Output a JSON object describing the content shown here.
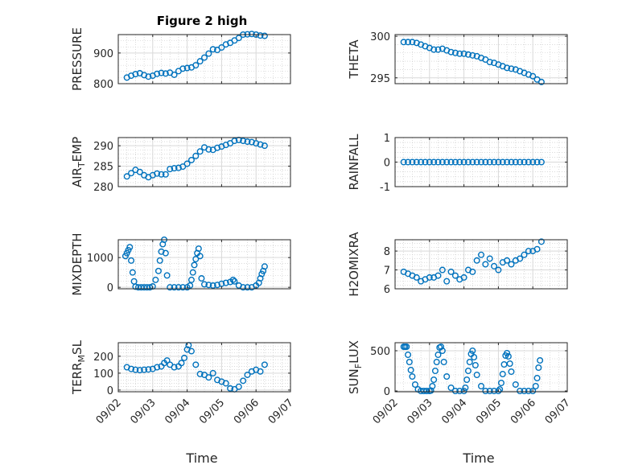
{
  "chart_data": [
    {
      "type": "scatter",
      "title": "Figure 2 high",
      "ylabel": "PRESSURE",
      "ylim": [
        800,
        960
      ],
      "yticks": [
        "800",
        "900"
      ],
      "ytick_values": [
        800,
        900
      ],
      "x": [
        "09/02 06:00",
        "09/02 09:00",
        "09/02 12:00",
        "09/02 15:00",
        "09/02 18:00",
        "09/02 21:00",
        "09/03 00:00",
        "09/03 03:00",
        "09/03 06:00",
        "09/03 09:00",
        "09/03 12:00",
        "09/03 15:00",
        "09/03 18:00",
        "09/03 21:00",
        "09/04 00:00",
        "09/04 03:00",
        "09/04 06:00",
        "09/04 09:00",
        "09/04 12:00",
        "09/04 15:00",
        "09/04 18:00",
        "09/04 21:00",
        "09/05 00:00",
        "09/05 03:00",
        "09/05 06:00",
        "09/05 09:00",
        "09/05 12:00",
        "09/05 15:00",
        "09/05 18:00",
        "09/05 21:00",
        "09/06 00:00",
        "09/06 03:00",
        "09/06 06:00"
      ],
      "values": [
        820,
        826,
        831,
        834,
        828,
        823,
        826,
        832,
        835,
        833,
        836,
        829,
        841,
        849,
        851,
        853,
        860,
        873,
        885,
        898,
        912,
        910,
        918,
        928,
        933,
        941,
        949,
        960,
        961,
        962,
        960,
        957,
        956
      ]
    },
    {
      "type": "scatter",
      "ylabel": "THETA",
      "ylim": [
        294.3,
        300.2
      ],
      "yticks": [
        "295",
        "300"
      ],
      "ytick_values": [
        295,
        300
      ],
      "x": [
        "09/02 06:00",
        "09/02 09:00",
        "09/02 12:00",
        "09/02 15:00",
        "09/02 18:00",
        "09/02 21:00",
        "09/03 00:00",
        "09/03 03:00",
        "09/03 06:00",
        "09/03 09:00",
        "09/03 12:00",
        "09/03 15:00",
        "09/03 18:00",
        "09/03 21:00",
        "09/04 00:00",
        "09/04 03:00",
        "09/04 06:00",
        "09/04 09:00",
        "09/04 12:00",
        "09/04 15:00",
        "09/04 18:00",
        "09/04 21:00",
        "09/05 00:00",
        "09/05 03:00",
        "09/05 06:00",
        "09/05 09:00",
        "09/05 12:00",
        "09/05 15:00",
        "09/05 18:00",
        "09/05 21:00",
        "09/06 00:00",
        "09/06 03:00",
        "09/06 06:00"
      ],
      "values": [
        299.3,
        299.3,
        299.3,
        299.2,
        299.0,
        298.8,
        298.6,
        298.4,
        298.4,
        298.5,
        298.3,
        298.1,
        298.0,
        297.9,
        297.9,
        297.8,
        297.7,
        297.6,
        297.4,
        297.2,
        296.9,
        296.8,
        296.6,
        296.4,
        296.2,
        296.1,
        296.0,
        295.8,
        295.6,
        295.4,
        295.2,
        294.8,
        294.5
      ]
    },
    {
      "type": "scatter",
      "ylabel": "AIR_TEMP",
      "ylabel_main": "AIR",
      "ylabel_sub": "T",
      "ylabel_tail": "EMP",
      "ylim": [
        280,
        292
      ],
      "yticks": [
        "280",
        "285",
        "290"
      ],
      "ytick_values": [
        280,
        285,
        290
      ],
      "x": [
        "09/02 06:00",
        "09/02 09:00",
        "09/02 12:00",
        "09/02 15:00",
        "09/02 18:00",
        "09/02 21:00",
        "09/03 00:00",
        "09/03 03:00",
        "09/03 06:00",
        "09/03 09:00",
        "09/03 12:00",
        "09/03 15:00",
        "09/03 18:00",
        "09/03 21:00",
        "09/04 00:00",
        "09/04 03:00",
        "09/04 06:00",
        "09/04 09:00",
        "09/04 12:00",
        "09/04 15:00",
        "09/04 18:00",
        "09/04 21:00",
        "09/05 00:00",
        "09/05 03:00",
        "09/05 06:00",
        "09/05 09:00",
        "09/05 12:00",
        "09/05 15:00",
        "09/05 18:00",
        "09/05 21:00",
        "09/06 00:00",
        "09/06 03:00",
        "09/06 06:00"
      ],
      "values": [
        282.5,
        283.3,
        284.1,
        283.6,
        282.8,
        282.3,
        282.8,
        283.2,
        283.0,
        283.0,
        284.3,
        284.5,
        284.6,
        284.9,
        285.6,
        286.5,
        287.5,
        288.6,
        289.6,
        289.1,
        289.0,
        289.5,
        289.8,
        290.2,
        290.6,
        291.2,
        291.4,
        291.2,
        291.0,
        290.9,
        290.6,
        290.3,
        290.0
      ]
    },
    {
      "type": "scatter",
      "ylabel": "RAINFALL",
      "ylim": [
        -1,
        1
      ],
      "yticks": [
        "-1",
        "0",
        "1"
      ],
      "ytick_values": [
        -1,
        0,
        1
      ],
      "x": [
        "09/02 06:00",
        "09/02 09:00",
        "09/02 12:00",
        "09/02 15:00",
        "09/02 18:00",
        "09/02 21:00",
        "09/03 00:00",
        "09/03 03:00",
        "09/03 06:00",
        "09/03 09:00",
        "09/03 12:00",
        "09/03 15:00",
        "09/03 18:00",
        "09/03 21:00",
        "09/04 00:00",
        "09/04 03:00",
        "09/04 06:00",
        "09/04 09:00",
        "09/04 12:00",
        "09/04 15:00",
        "09/04 18:00",
        "09/04 21:00",
        "09/05 00:00",
        "09/05 03:00",
        "09/05 06:00",
        "09/05 09:00",
        "09/05 12:00",
        "09/05 15:00",
        "09/05 18:00",
        "09/05 21:00",
        "09/06 00:00",
        "09/06 03:00",
        "09/06 06:00"
      ],
      "values": [
        0,
        0,
        0,
        0,
        0,
        0,
        0,
        0,
        0,
        0,
        0,
        0,
        0,
        0,
        0,
        0,
        0,
        0,
        0,
        0,
        0,
        0,
        0,
        0,
        0,
        0,
        0,
        0,
        0,
        0,
        0,
        0,
        0
      ]
    },
    {
      "type": "scatter",
      "ylabel": "MIXDEPTH",
      "ylim": [
        -50,
        1600
      ],
      "yticks": [
        "0",
        "1000"
      ],
      "ytick_values": [
        0,
        1000
      ],
      "x": [
        "09/02 05:00",
        "09/02 06:00",
        "09/02 07:00",
        "09/02 08:00",
        "09/02 09:00",
        "09/02 10:00",
        "09/02 11:00",
        "09/02 12:00",
        "09/02 14:00",
        "09/02 16:00",
        "09/02 18:00",
        "09/02 20:00",
        "09/02 22:00",
        "09/03 00:00",
        "09/03 02:00",
        "09/03 04:00",
        "09/03 05:00",
        "09/03 06:00",
        "09/03 07:00",
        "09/03 08:00",
        "09/03 09:00",
        "09/03 10:00",
        "09/03 12:00",
        "09/03 15:00",
        "09/03 18:00",
        "09/03 21:00",
        "09/04 00:00",
        "09/04 02:00",
        "09/04 03:00",
        "09/04 04:00",
        "09/04 05:00",
        "09/04 06:00",
        "09/04 07:00",
        "09/04 08:00",
        "09/04 09:00",
        "09/04 10:00",
        "09/04 12:00",
        "09/04 15:00",
        "09/04 18:00",
        "09/04 21:00",
        "09/05 00:00",
        "09/05 03:00",
        "09/05 06:00",
        "09/05 08:00",
        "09/05 09:00",
        "09/05 12:00",
        "09/05 15:00",
        "09/05 18:00",
        "09/05 21:00",
        "09/06 00:00",
        "09/06 02:00",
        "09/06 03:00",
        "09/06 04:00",
        "09/06 05:00",
        "09/06 06:00"
      ],
      "values": [
        1050,
        1150,
        1250,
        1350,
        900,
        500,
        200,
        20,
        0,
        0,
        0,
        0,
        0,
        30,
        250,
        550,
        900,
        1200,
        1450,
        1600,
        1150,
        400,
        0,
        0,
        0,
        0,
        0,
        60,
        250,
        500,
        750,
        950,
        1150,
        1300,
        1050,
        300,
        100,
        80,
        60,
        80,
        120,
        150,
        180,
        250,
        200,
        60,
        0,
        0,
        0,
        60,
        150,
        300,
        450,
        550,
        700
      ]
    },
    {
      "type": "scatter",
      "ylabel": "H2OMIXRA",
      "ylim": [
        6,
        8.6
      ],
      "yticks": [
        "6",
        "7",
        "8"
      ],
      "ytick_values": [
        6,
        7,
        8
      ],
      "x": [
        "09/02 06:00",
        "09/02 09:00",
        "09/02 12:00",
        "09/02 15:00",
        "09/02 18:00",
        "09/02 21:00",
        "09/03 00:00",
        "09/03 03:00",
        "09/03 06:00",
        "09/03 09:00",
        "09/03 12:00",
        "09/03 15:00",
        "09/03 18:00",
        "09/03 21:00",
        "09/04 00:00",
        "09/04 03:00",
        "09/04 06:00",
        "09/04 09:00",
        "09/04 12:00",
        "09/04 15:00",
        "09/04 18:00",
        "09/04 21:00",
        "09/05 00:00",
        "09/05 03:00",
        "09/05 06:00",
        "09/05 09:00",
        "09/05 12:00",
        "09/05 15:00",
        "09/05 18:00",
        "09/05 21:00",
        "09/06 00:00",
        "09/06 03:00",
        "09/06 06:00"
      ],
      "values": [
        6.9,
        6.8,
        6.7,
        6.6,
        6.4,
        6.5,
        6.6,
        6.6,
        6.7,
        7.0,
        6.4,
        6.9,
        6.7,
        6.5,
        6.6,
        7.0,
        6.9,
        7.5,
        7.8,
        7.3,
        7.6,
        7.2,
        7.0,
        7.4,
        7.5,
        7.3,
        7.5,
        7.6,
        7.8,
        8.0,
        8.0,
        8.1,
        8.5
      ]
    },
    {
      "type": "scatter",
      "ylabel": "TERR_MSL",
      "ylabel_main": "TERR",
      "ylabel_sub": "M",
      "ylabel_tail": "SL",
      "ylim": [
        -10,
        280
      ],
      "yticks": [
        "0",
        "100",
        "200"
      ],
      "ytick_values": [
        0,
        100,
        200
      ],
      "x": [
        "09/02 06:00",
        "09/02 09:00",
        "09/02 12:00",
        "09/02 15:00",
        "09/02 18:00",
        "09/02 21:00",
        "09/03 00:00",
        "09/03 03:00",
        "09/03 06:00",
        "09/03 08:00",
        "09/03 10:00",
        "09/03 12:00",
        "09/03 15:00",
        "09/03 18:00",
        "09/03 20:00",
        "09/03 22:00",
        "09/04 00:00",
        "09/04 01:00",
        "09/04 03:00",
        "09/04 06:00",
        "09/04 09:00",
        "09/04 12:00",
        "09/04 15:00",
        "09/04 18:00",
        "09/04 21:00",
        "09/05 00:00",
        "09/05 03:00",
        "09/05 06:00",
        "09/05 09:00",
        "09/05 12:00",
        "09/05 15:00",
        "09/05 18:00",
        "09/05 21:00",
        "09/06 00:00",
        "09/06 03:00",
        "09/06 06:00"
      ],
      "values": [
        135,
        125,
        120,
        118,
        120,
        122,
        125,
        135,
        140,
        160,
        175,
        150,
        135,
        140,
        160,
        190,
        240,
        265,
        230,
        150,
        95,
        90,
        75,
        100,
        60,
        50,
        40,
        10,
        5,
        20,
        55,
        90,
        110,
        120,
        110,
        150
      ]
    },
    {
      "type": "scatter",
      "ylabel": "SUN_FLUX",
      "ylabel_main": "SUN",
      "ylabel_sub": "F",
      "ylabel_tail": "LUX",
      "ylim": [
        -10,
        600
      ],
      "yticks": [
        "0",
        "500"
      ],
      "ytick_values": [
        0,
        500
      ],
      "x": [
        "09/02 06:00",
        "09/02 07:00",
        "09/02 08:00",
        "09/02 09:00",
        "09/02 10:00",
        "09/02 11:00",
        "09/02 12:00",
        "09/02 14:00",
        "09/02 16:00",
        "09/02 18:00",
        "09/02 20:00",
        "09/02 22:00",
        "09/03 00:00",
        "09/03 01:00",
        "09/03 02:00",
        "09/03 03:00",
        "09/03 04:00",
        "09/03 05:00",
        "09/03 06:00",
        "09/03 07:00",
        "09/03 08:00",
        "09/03 09:00",
        "09/03 10:00",
        "09/03 12:00",
        "09/03 15:00",
        "09/03 18:00",
        "09/03 21:00",
        "09/04 00:00",
        "09/04 01:00",
        "09/04 02:00",
        "09/04 03:00",
        "09/04 04:00",
        "09/04 05:00",
        "09/04 06:00",
        "09/04 07:00",
        "09/04 08:00",
        "09/04 09:00",
        "09/04 12:00",
        "09/04 15:00",
        "09/04 18:00",
        "09/04 21:00",
        "09/05 00:00",
        "09/05 01:00",
        "09/05 02:00",
        "09/05 03:00",
        "09/05 04:00",
        "09/05 05:00",
        "09/05 06:00",
        "09/05 07:00",
        "09/05 08:00",
        "09/05 09:00",
        "09/05 12:00",
        "09/05 15:00",
        "09/05 18:00",
        "09/05 21:00",
        "09/06 00:00",
        "09/06 02:00",
        "09/06 03:00",
        "09/06 04:00",
        "09/06 05:00"
      ],
      "values": [
        550,
        550,
        550,
        450,
        360,
        260,
        180,
        80,
        20,
        0,
        0,
        0,
        0,
        5,
        60,
        140,
        250,
        360,
        450,
        540,
        550,
        500,
        360,
        180,
        40,
        0,
        0,
        0,
        40,
        140,
        250,
        360,
        460,
        500,
        420,
        320,
        200,
        60,
        0,
        0,
        0,
        0,
        20,
        100,
        210,
        330,
        440,
        470,
        430,
        340,
        240,
        80,
        0,
        0,
        0,
        0,
        60,
        160,
        290,
        380
      ]
    }
  ],
  "x_axis": {
    "xlim": [
      "09/02 00:00",
      "09/07 00:00"
    ],
    "ticks": [
      "09/02",
      "09/03",
      "09/04",
      "09/05",
      "09/06",
      "09/07"
    ],
    "xlabel": "Time"
  },
  "colors": {
    "marker": "#0072BD",
    "axis": "#262626",
    "grid": "#d9d9d9",
    "minor_grid": "#c4c4c4"
  },
  "grid": true
}
